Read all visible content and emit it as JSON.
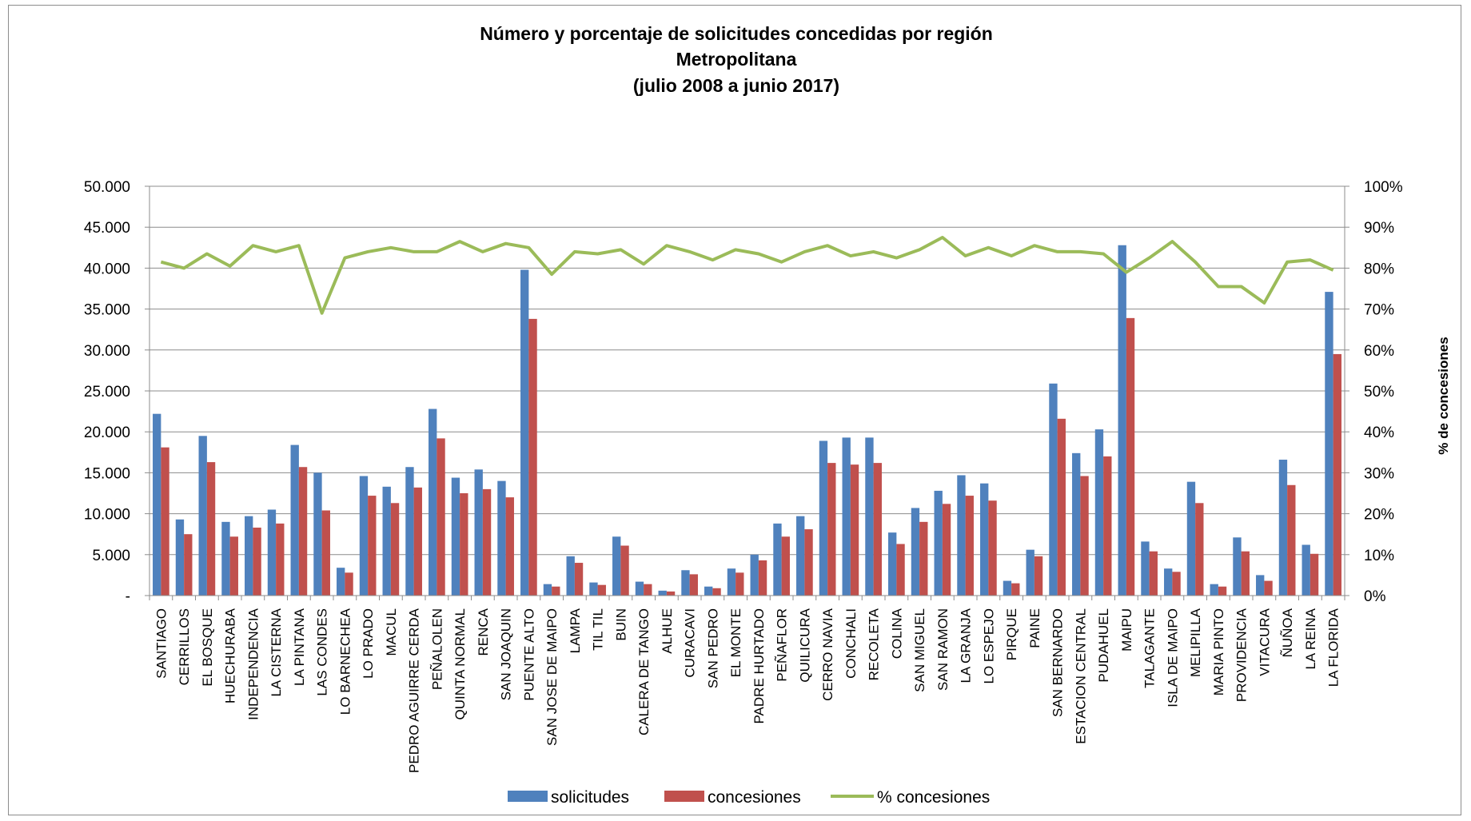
{
  "chart_data": {
    "type": "bar",
    "title_lines": [
      "Número y porcentaje de solicitudes concedidas por región",
      "Metropolitana",
      "(julio 2008 a junio 2017)"
    ],
    "categories": [
      "SANTIAGO",
      "CERRILLOS",
      "EL BOSQUE",
      "HUECHURABA",
      "INDEPENDENCIA",
      "LA CISTERNA",
      "LA PINTANA",
      "LAS CONDES",
      "LO BARNECHEA",
      "LO PRADO",
      "MACUL",
      "PEDRO AGUIRRE CERDA",
      "PEÑALOLEN",
      "QUINTA NORMAL",
      "RENCA",
      "SAN JOAQUIN",
      "PUENTE ALTO",
      "SAN JOSE DE MAIPO",
      "LAMPA",
      "TIL TIL",
      "BUIN",
      "CALERA DE TANGO",
      "ALHUE",
      "CURACAVI",
      "SAN PEDRO",
      "EL MONTE",
      "PADRE HURTADO",
      "PEÑAFLOR",
      "QUILICURA",
      "CERRO NAVIA",
      "CONCHALI",
      "RECOLETA",
      "COLINA",
      "SAN MIGUEL",
      "SAN RAMON",
      "LA GRANJA",
      "LO ESPEJO",
      "PIRQUE",
      "PAINE",
      "SAN BERNARDO",
      "ESTACION CENTRAL",
      "PUDAHUEL",
      "MAIPU",
      "TALAGANTE",
      "ISLA DE MAIPO",
      "MELIPILLA",
      "MARIA PINTO",
      "PROVIDENCIA",
      "VITACURA",
      "ÑUÑOA",
      "LA REINA",
      "LA FLORIDA"
    ],
    "series": [
      {
        "name": "solicitudes",
        "axis": "left",
        "kind": "bar",
        "color": "#4f81bd",
        "values": [
          22200,
          9300,
          19500,
          9000,
          9700,
          10500,
          18400,
          15000,
          3400,
          14600,
          13300,
          15700,
          22800,
          14400,
          15400,
          14000,
          39800,
          1400,
          4800,
          1600,
          7200,
          1700,
          600,
          3100,
          1100,
          3300,
          5000,
          8800,
          9700,
          18900,
          19300,
          19300,
          7700,
          10700,
          12800,
          14700,
          13700,
          1800,
          5600,
          25900,
          17400,
          20300,
          42800,
          6600,
          3300,
          13900,
          1400,
          7100,
          2500,
          16600,
          6200,
          37100
        ]
      },
      {
        "name": "concesiones",
        "axis": "left",
        "kind": "bar",
        "color": "#c0504d",
        "values": [
          18100,
          7500,
          16300,
          7200,
          8300,
          8800,
          15700,
          10400,
          2800,
          12200,
          11300,
          13200,
          19200,
          12500,
          13000,
          12000,
          33800,
          1100,
          4000,
          1300,
          6100,
          1400,
          500,
          2600,
          900,
          2800,
          4300,
          7200,
          8100,
          16200,
          16000,
          16200,
          6300,
          9000,
          11200,
          12200,
          11600,
          1500,
          4800,
          21600,
          14600,
          17000,
          33900,
          5400,
          2900,
          11300,
          1100,
          5400,
          1800,
          13500,
          5100,
          29500
        ]
      },
      {
        "name": "% concesiones",
        "axis": "right",
        "kind": "line",
        "color": "#9bbb59",
        "values": [
          81.5,
          80,
          83.5,
          80.5,
          85.5,
          84,
          85.5,
          69,
          82.5,
          84,
          85,
          84,
          84,
          86.5,
          84,
          86,
          85,
          78.5,
          84,
          83.5,
          84.5,
          81,
          85.5,
          84,
          82,
          84.5,
          83.5,
          81.5,
          84,
          85.5,
          83,
          84,
          82.5,
          84.5,
          87.5,
          83,
          85,
          83,
          85.5,
          84,
          84,
          83.5,
          79,
          82.5,
          86.5,
          81.5,
          75.5,
          75.5,
          71.5,
          81.5,
          82,
          79.5
        ]
      }
    ],
    "y_left": {
      "min": 0,
      "max": 50000,
      "step": 5000,
      "tick_labels": [
        "-",
        "5.000",
        "10.000",
        "15.000",
        "20.000",
        "25.000",
        "30.000",
        "35.000",
        "40.000",
        "45.000",
        "50.000"
      ]
    },
    "y_right": {
      "min": 0,
      "max": 100,
      "step": 10,
      "label": "% de concesiones",
      "tick_labels": [
        "0%",
        "10%",
        "20%",
        "30%",
        "40%",
        "50%",
        "60%",
        "70%",
        "80%",
        "90%",
        "100%"
      ]
    },
    "legend": {
      "position": "bottom",
      "entries": [
        {
          "label": "solicitudes",
          "color": "#4f81bd",
          "kind": "bar"
        },
        {
          "label": "concesiones",
          "color": "#c0504d",
          "kind": "bar"
        },
        {
          "label": "% concesiones",
          "color": "#9bbb59",
          "kind": "line"
        }
      ]
    }
  }
}
